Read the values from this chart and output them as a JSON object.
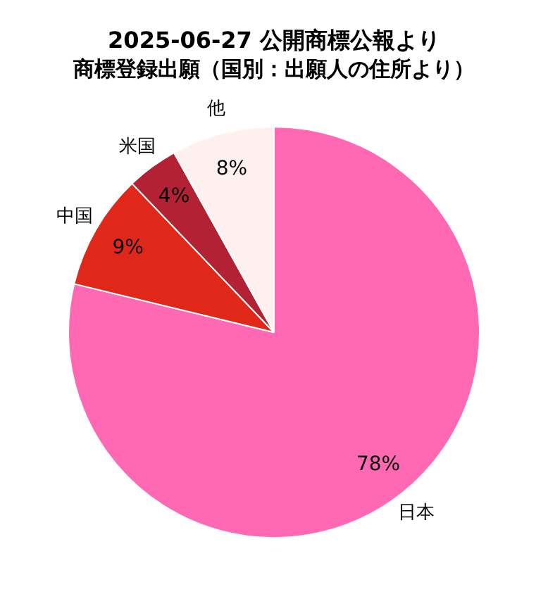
{
  "chart_data": {
    "type": "pie",
    "title": "2025-06-27 公開商標公報より",
    "subtitle": "商標登録出願（国別：出願人の住所より）",
    "categories": [
      "日本",
      "中国",
      "米国",
      "他"
    ],
    "values": [
      78,
      9,
      4,
      8
    ],
    "value_labels": [
      "78%",
      "9%",
      "4%",
      "8%"
    ],
    "colors": [
      "#ff69b4",
      "#e0281a",
      "#b22234",
      "#fff0f0"
    ],
    "legend": false
  }
}
